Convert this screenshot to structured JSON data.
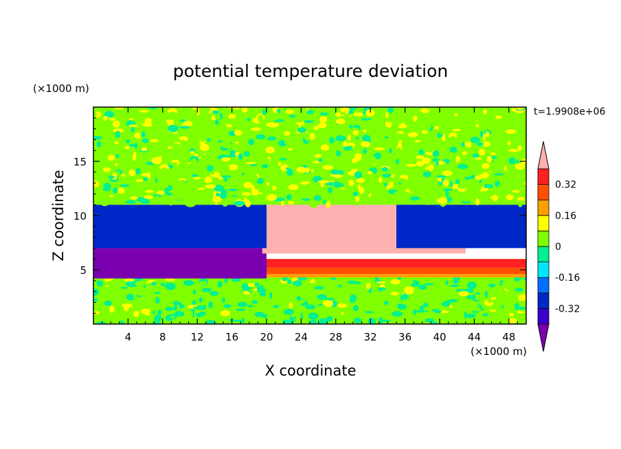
{
  "chart_data": {
    "type": "heatmap",
    "title": "potential temperature deviation",
    "xlabel": "X coordinate",
    "ylabel": "Z coordinate",
    "x_unit": "(×1000 m)",
    "y_unit": "(×1000 m)",
    "time_label": "t=1.9908e+06",
    "xlim": [
      0,
      50
    ],
    "ylim": [
      0,
      20
    ],
    "x_ticks": [
      4,
      8,
      12,
      16,
      20,
      24,
      28,
      32,
      36,
      40,
      44,
      48
    ],
    "y_ticks": [
      5,
      10,
      15
    ],
    "colorbar": {
      "levels": [
        -0.4,
        -0.32,
        -0.24,
        -0.16,
        -0.08,
        0,
        0.08,
        0.16,
        0.24,
        0.32,
        0.4
      ],
      "colors": [
        "#7a00b0",
        "#3a00c8",
        "#0028c8",
        "#0070ff",
        "#00e8ff",
        "#00f090",
        "#80ff00",
        "#ffff00",
        "#ffa000",
        "#ff5000",
        "#ff2020",
        "#ffb0b0"
      ],
      "labels": [
        "0.32",
        "0.16",
        "0",
        "-0.16",
        "-0.32"
      ],
      "label_values": [
        0.32,
        0.16,
        0,
        -0.16,
        -0.32
      ],
      "extend": "both"
    },
    "regions": [
      {
        "x": [
          0,
          50
        ],
        "z": [
          0,
          4.3
        ],
        "value": 0.02,
        "texture": "noisy"
      },
      {
        "x": [
          0,
          50
        ],
        "z": [
          4.3,
          4.6
        ],
        "value": 0.22
      },
      {
        "x": [
          0,
          50
        ],
        "z": [
          4.6,
          5.2
        ],
        "value": 0.28
      },
      {
        "x": [
          0,
          50
        ],
        "z": [
          5.2,
          6.0
        ],
        "value": 0.35
      },
      {
        "x": [
          0,
          20
        ],
        "z": [
          4.2,
          7.0
        ],
        "value": -0.42
      },
      {
        "x": [
          19.5,
          43
        ],
        "z": [
          6.5,
          11.2
        ],
        "value": 0.45
      },
      {
        "x": [
          0,
          20
        ],
        "z": [
          7.0,
          11.0
        ],
        "value": -0.3
      },
      {
        "x": [
          35,
          50
        ],
        "z": [
          7.0,
          11.0
        ],
        "value": -0.3
      },
      {
        "x": [
          0,
          50
        ],
        "z": [
          11.0,
          20.0
        ],
        "value": 0.05,
        "texture": "noisy"
      }
    ]
  }
}
